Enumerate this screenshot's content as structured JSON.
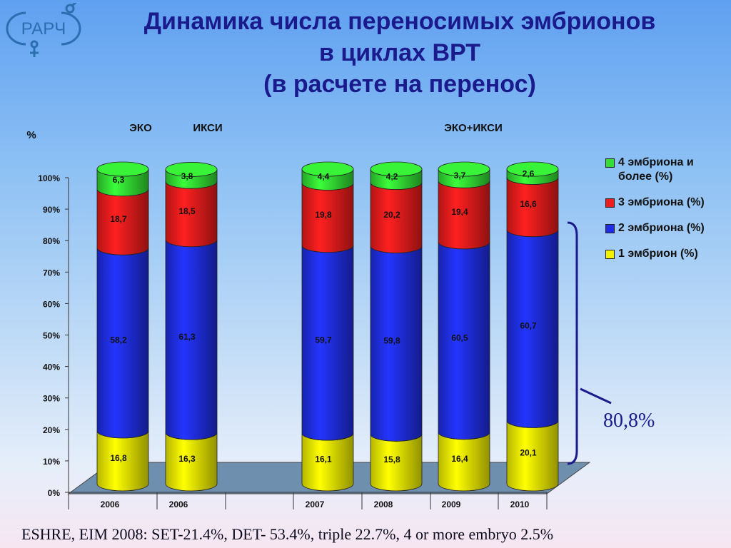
{
  "title_lines": [
    "Динамика числа переносимых эмбрионов",
    "в циклах ВРТ",
    "(в расчете на перенос)"
  ],
  "logo": {
    "text": "РАРЧ",
    "icon": "raphch-logo-icon",
    "color": "#2b6fb0"
  },
  "footnote": "ESHRE, EIM 2008: SET-21.4%, DET- 53.4%, triple 22.7%,  4 or more embryo  2.5%",
  "callout": {
    "text": "80,8%"
  },
  "chart_data": {
    "type": "bar",
    "stacked": true,
    "ylabel": "%",
    "ylim": [
      0,
      100
    ],
    "yticks": [
      "0%",
      "10%",
      "20%",
      "30%",
      "40%",
      "50%",
      "60%",
      "70%",
      "80%",
      "90%",
      "100%"
    ],
    "group_labels": [
      {
        "text": "ЭКО",
        "category_index": 0
      },
      {
        "text": "ИКСИ",
        "category_index": 1
      },
      {
        "text": "ЭКО+ИКСИ",
        "category_range": [
          2,
          5
        ]
      }
    ],
    "categories": [
      "2006",
      "2006",
      "2007",
      "2008",
      "2009",
      "2010"
    ],
    "series": [
      {
        "name": "1 эмбрион (%)",
        "color": "#f2f200",
        "values": [
          16.8,
          16.3,
          16.1,
          15.8,
          16.4,
          20.1
        ],
        "labels": [
          "16,8",
          "16,3",
          "16,1",
          "15,8",
          "16,4",
          "20,1"
        ]
      },
      {
        "name": "2 эмбриона (%)",
        "color": "#1f2ee6",
        "values": [
          58.2,
          61.3,
          59.7,
          59.8,
          60.5,
          60.7
        ],
        "labels": [
          "58,2",
          "61,3",
          "59,7",
          "59,8",
          "60,5",
          "60,7"
        ]
      },
      {
        "name": "3 эмбриона (%)",
        "color": "#ee1c1c",
        "values": [
          18.7,
          18.5,
          19.8,
          20.2,
          19.4,
          16.6
        ],
        "labels": [
          "18,7",
          "18,5",
          "19,8",
          "20,2",
          "19,4",
          "16,6"
        ]
      },
      {
        "name": "4 эмбриона и более (%)",
        "color": "#33dd33",
        "values": [
          6.3,
          3.8,
          4.4,
          4.2,
          3.7,
          2.6
        ],
        "labels": [
          "6,3",
          "3,8",
          "4,4",
          "4,2",
          "3,7",
          "2,6"
        ]
      }
    ],
    "legend": {
      "position": "right",
      "order": [
        3,
        2,
        1,
        0
      ]
    },
    "grid": false
  }
}
